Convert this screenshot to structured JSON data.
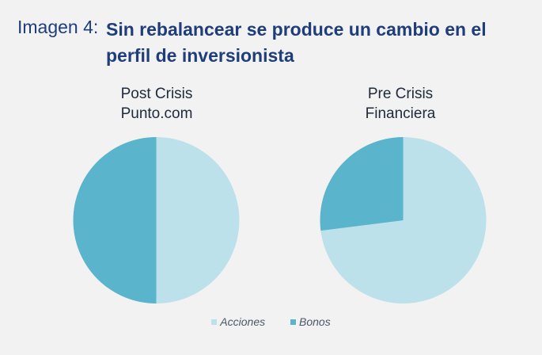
{
  "header": {
    "prefix": "Imagen 4:",
    "title_line1": "Sin rebalancear se produce un cambio en el",
    "title_line2": "perfil de inversionista"
  },
  "colors": {
    "acciones": "#bde1ea",
    "bonos": "#5ab4cc",
    "title": "#1f3d7a"
  },
  "chart_data": [
    {
      "type": "pie",
      "title_line1": "Post Crisis",
      "title_line2": "Punto.com",
      "categories": [
        "Acciones",
        "Bonos"
      ],
      "values": [
        50,
        50
      ]
    },
    {
      "type": "pie",
      "title_line1": "Pre Crisis",
      "title_line2": "Financiera",
      "categories": [
        "Acciones",
        "Bonos"
      ],
      "values": [
        73,
        27
      ]
    }
  ],
  "legend": {
    "items": [
      "Acciones",
      "Bonos"
    ],
    "placement": "bottom"
  }
}
